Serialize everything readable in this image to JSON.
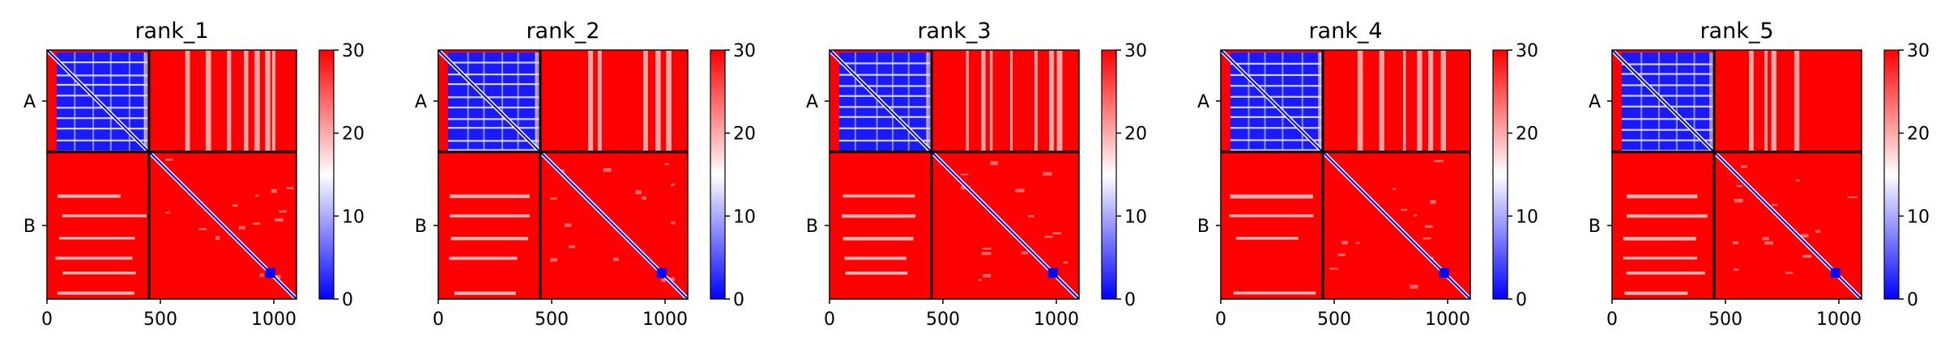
{
  "chart_data": {
    "type": "heatmap",
    "colormap": {
      "name": "bwr",
      "low": "#0000ff",
      "mid": "#ffffff",
      "high": "#ff0000",
      "vmin": 0,
      "vmax": 30
    },
    "colorbar_ticks": [
      "0",
      "10",
      "20",
      "30"
    ],
    "x_ticks": [
      {
        "value": 0,
        "label": "0"
      },
      {
        "value": 500,
        "label": "500"
      },
      {
        "value": 1000,
        "label": "1000"
      }
    ],
    "y_tick_labels": [
      "A",
      "B"
    ],
    "chain_boundary": 450,
    "matrix_size": 1100,
    "panels": [
      {
        "title": "rank_1"
      },
      {
        "title": "rank_2"
      },
      {
        "title": "rank_3"
      },
      {
        "title": "rank_4"
      },
      {
        "title": "rank_5"
      }
    ]
  }
}
